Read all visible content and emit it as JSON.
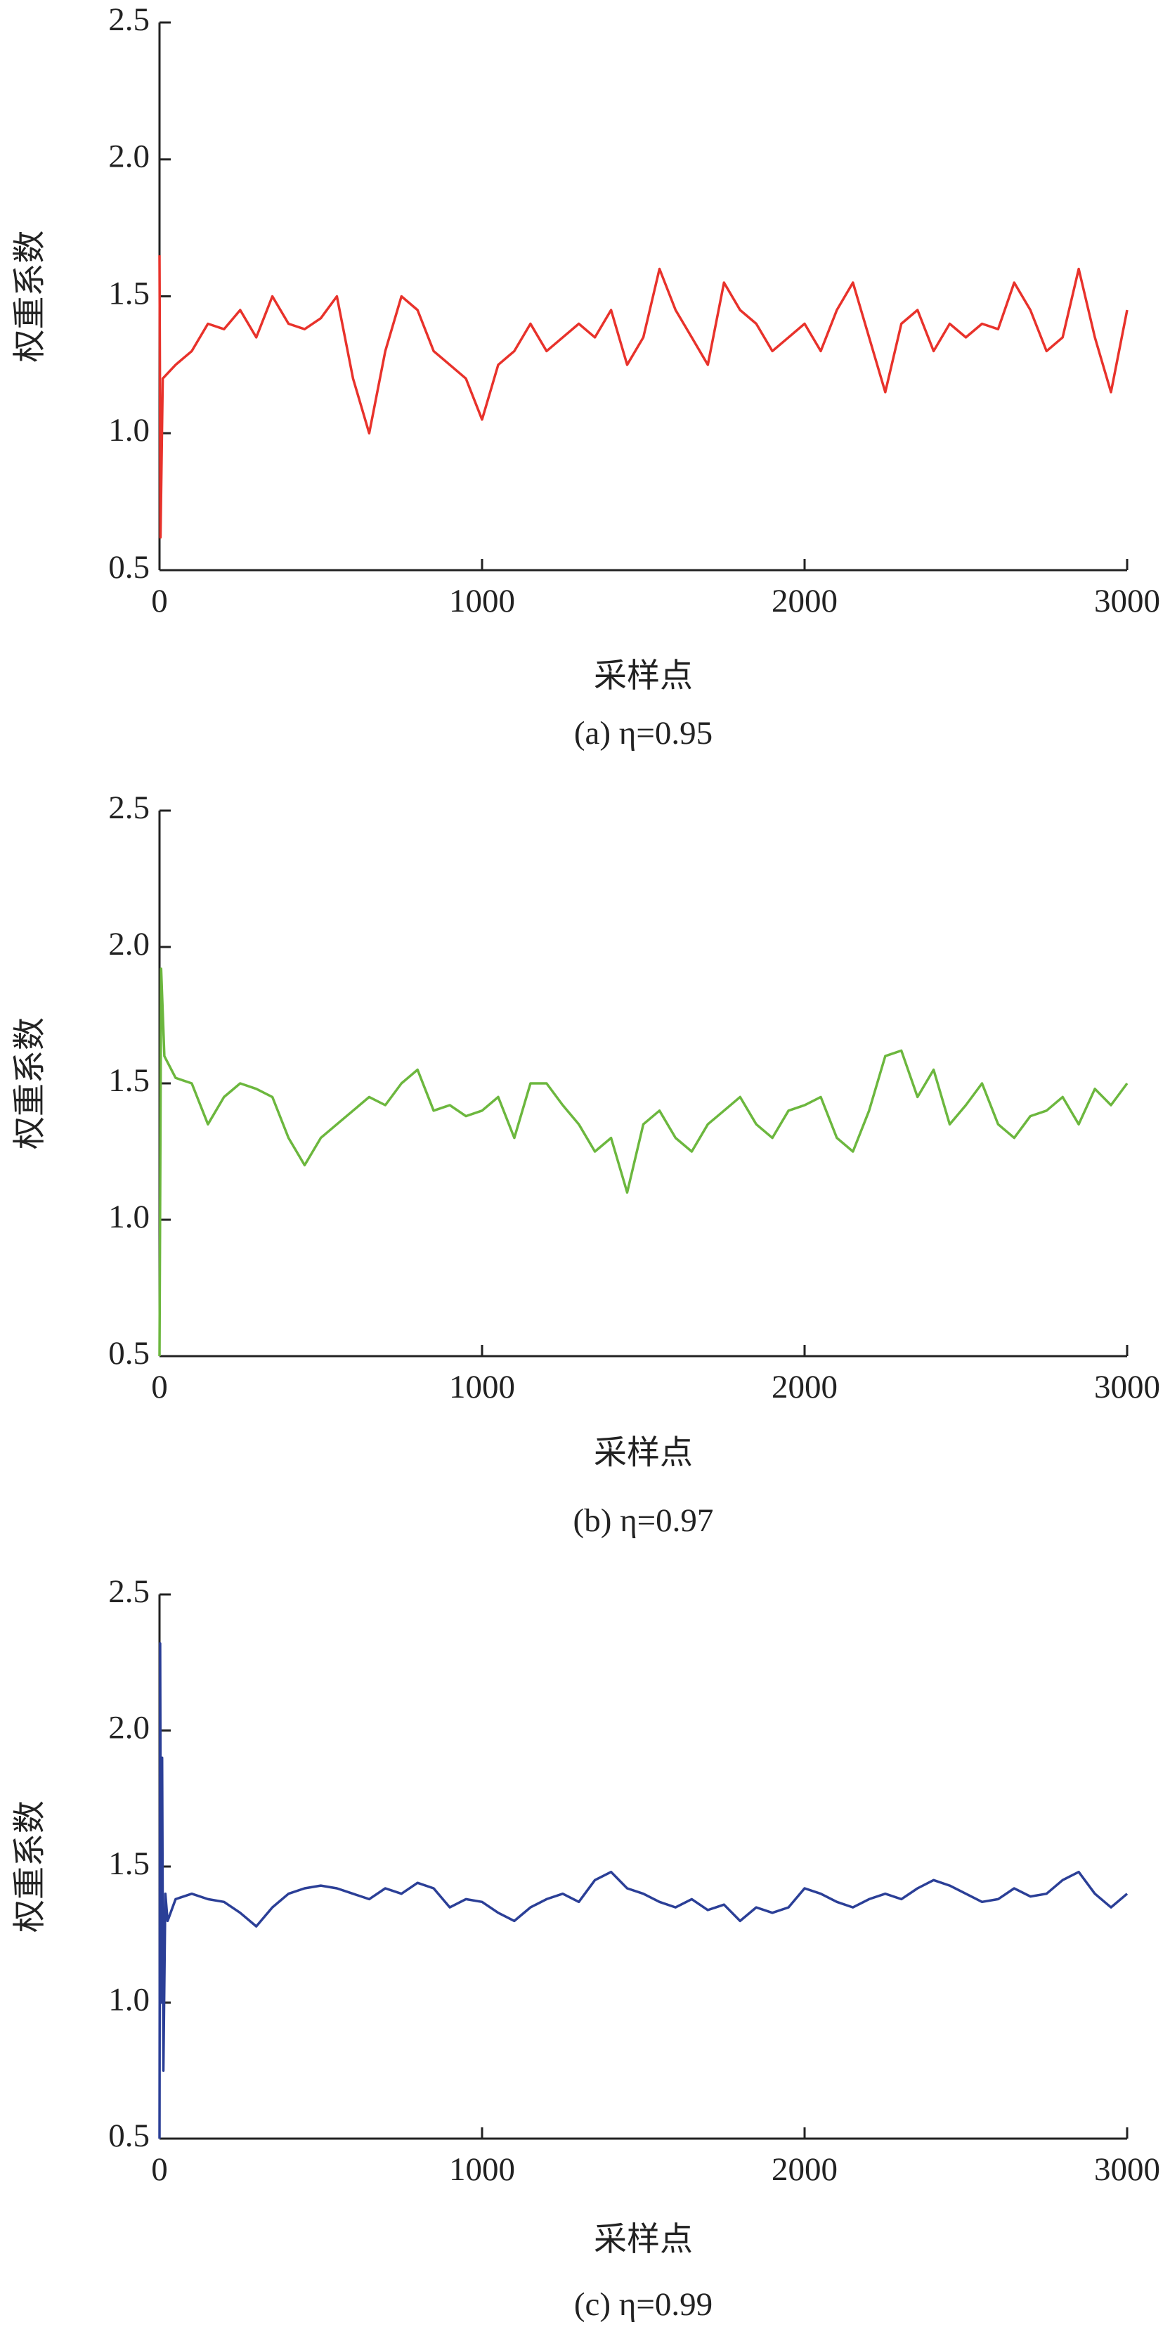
{
  "chart_data": [
    {
      "type": "line",
      "y_label": "权重系数",
      "x_label": "采样点",
      "caption": "(a)  η=0.95",
      "color": "#e8322b",
      "xlim": [
        0,
        3000
      ],
      "ylim": [
        0.5,
        2.5
      ],
      "xticks": [
        0,
        1000,
        2000,
        3000
      ],
      "yticks": [
        0.5,
        {
          "value": 1.0,
          "label": "1.0"
        },
        1.5,
        {
          "value": 2.0,
          "label": "2.0"
        },
        2.5
      ],
      "x": [
        0,
        3,
        10,
        50,
        100,
        150,
        200,
        250,
        300,
        350,
        400,
        450,
        500,
        550,
        600,
        650,
        700,
        750,
        800,
        850,
        900,
        950,
        1000,
        1050,
        1100,
        1150,
        1200,
        1250,
        1300,
        1350,
        1400,
        1450,
        1500,
        1550,
        1600,
        1650,
        1700,
        1750,
        1800,
        1850,
        1900,
        1950,
        2000,
        2050,
        2100,
        2150,
        2200,
        2250,
        2300,
        2350,
        2400,
        2450,
        2500,
        2550,
        2600,
        2650,
        2700,
        2750,
        2800,
        2850,
        2900,
        2950,
        3000
      ],
      "values": [
        1.65,
        0.62,
        1.2,
        1.25,
        1.3,
        1.4,
        1.38,
        1.45,
        1.35,
        1.5,
        1.4,
        1.38,
        1.42,
        1.5,
        1.2,
        1.0,
        1.3,
        1.5,
        1.45,
        1.3,
        1.25,
        1.2,
        1.05,
        1.25,
        1.3,
        1.4,
        1.3,
        1.35,
        1.4,
        1.35,
        1.45,
        1.25,
        1.35,
        1.6,
        1.45,
        1.35,
        1.25,
        1.55,
        1.45,
        1.4,
        1.3,
        1.35,
        1.4,
        1.3,
        1.45,
        1.55,
        1.35,
        1.15,
        1.4,
        1.45,
        1.3,
        1.4,
        1.35,
        1.4,
        1.38,
        1.55,
        1.45,
        1.3,
        1.35,
        1.6,
        1.35,
        1.15,
        1.45
      ]
    },
    {
      "type": "line",
      "y_label": "权重系数",
      "x_label": "采样点",
      "caption": "(b)  η=0.97",
      "color": "#6cb73e",
      "xlim": [
        0,
        3000
      ],
      "ylim": [
        0.5,
        2.5
      ],
      "xticks": [
        0,
        1000,
        2000,
        3000
      ],
      "yticks": [
        0.5,
        {
          "value": 1.0,
          "label": "1.0"
        },
        1.5,
        {
          "value": 2.0,
          "label": "2.0"
        },
        2.5
      ],
      "x": [
        0,
        5,
        15,
        50,
        100,
        150,
        200,
        250,
        300,
        350,
        400,
        450,
        500,
        550,
        600,
        650,
        700,
        750,
        800,
        850,
        900,
        950,
        1000,
        1050,
        1100,
        1150,
        1200,
        1250,
        1300,
        1350,
        1400,
        1450,
        1500,
        1550,
        1600,
        1650,
        1700,
        1750,
        1800,
        1850,
        1900,
        1950,
        2000,
        2050,
        2100,
        2150,
        2200,
        2250,
        2300,
        2350,
        2400,
        2450,
        2500,
        2550,
        2600,
        2650,
        2700,
        2750,
        2800,
        2850,
        2900,
        2950,
        3000
      ],
      "values": [
        0.5,
        1.92,
        1.6,
        1.52,
        1.5,
        1.35,
        1.45,
        1.5,
        1.48,
        1.45,
        1.3,
        1.2,
        1.3,
        1.35,
        1.4,
        1.45,
        1.42,
        1.5,
        1.55,
        1.4,
        1.42,
        1.38,
        1.4,
        1.45,
        1.3,
        1.5,
        1.5,
        1.42,
        1.35,
        1.25,
        1.3,
        1.1,
        1.35,
        1.4,
        1.3,
        1.25,
        1.35,
        1.4,
        1.45,
        1.35,
        1.3,
        1.4,
        1.42,
        1.45,
        1.3,
        1.25,
        1.4,
        1.6,
        1.62,
        1.45,
        1.55,
        1.35,
        1.42,
        1.5,
        1.35,
        1.3,
        1.38,
        1.4,
        1.45,
        1.35,
        1.48,
        1.42,
        1.5
      ]
    },
    {
      "type": "line",
      "y_label": "权重系数",
      "x_label": "采样点",
      "caption": "(c)  η=0.99",
      "color": "#2b3f97",
      "xlim": [
        0,
        3000
      ],
      "ylim": [
        0.5,
        2.5
      ],
      "xticks": [
        0,
        1000,
        2000,
        3000
      ],
      "yticks": [
        0.5,
        {
          "value": 1.0,
          "label": "1.0"
        },
        1.5,
        {
          "value": 2.0,
          "label": "2.0"
        },
        2.5
      ],
      "x": [
        0,
        2,
        5,
        8,
        12,
        18,
        25,
        50,
        100,
        150,
        200,
        250,
        300,
        350,
        400,
        450,
        500,
        550,
        600,
        650,
        700,
        750,
        800,
        850,
        900,
        950,
        1000,
        1050,
        1100,
        1150,
        1200,
        1250,
        1300,
        1350,
        1400,
        1450,
        1500,
        1550,
        1600,
        1650,
        1700,
        1750,
        1800,
        1850,
        1900,
        1950,
        2000,
        2050,
        2100,
        2150,
        2200,
        2250,
        2300,
        2350,
        2400,
        2450,
        2500,
        2550,
        2600,
        2650,
        2700,
        2750,
        2800,
        2850,
        2900,
        2950,
        3000
      ],
      "values": [
        0.5,
        2.32,
        1.0,
        1.9,
        0.75,
        1.4,
        1.3,
        1.38,
        1.4,
        1.38,
        1.37,
        1.33,
        1.28,
        1.35,
        1.4,
        1.42,
        1.43,
        1.42,
        1.4,
        1.38,
        1.42,
        1.4,
        1.44,
        1.42,
        1.35,
        1.38,
        1.37,
        1.33,
        1.3,
        1.35,
        1.38,
        1.4,
        1.37,
        1.45,
        1.48,
        1.42,
        1.4,
        1.37,
        1.35,
        1.38,
        1.34,
        1.36,
        1.3,
        1.35,
        1.33,
        1.35,
        1.42,
        1.4,
        1.37,
        1.35,
        1.38,
        1.4,
        1.38,
        1.42,
        1.45,
        1.43,
        1.4,
        1.37,
        1.38,
        1.42,
        1.39,
        1.4,
        1.45,
        1.48,
        1.4,
        1.35,
        1.4
      ]
    }
  ]
}
